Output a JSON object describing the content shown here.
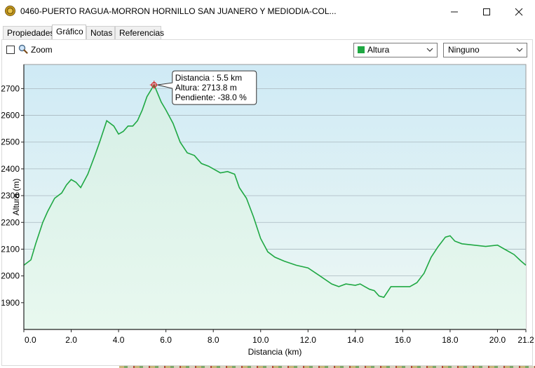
{
  "window": {
    "title": "0460-PUERTO RAGUA-MORRON HORNILLO SAN JUANERO Y MEDIODIA-COL..."
  },
  "tabs": [
    {
      "label": "Propiedades",
      "active": false
    },
    {
      "label": "Gráfico",
      "active": true
    },
    {
      "label": "Notas",
      "active": false
    },
    {
      "label": "Referencias",
      "active": false
    }
  ],
  "toolbar": {
    "zoom_label": "Zoom",
    "zoom_checked": false,
    "series_select": {
      "value": "Altura",
      "color": "#1fa843"
    },
    "secondary_select": {
      "value": "Ninguno"
    }
  },
  "tooltip": {
    "line1": "Distancia  : 5.5 km",
    "line2": "Altura: 2713.8 m",
    "line3": "Pendiente: -38.0 %"
  },
  "chart_data": {
    "type": "area",
    "xlabel": "Distancia  (km)",
    "ylabel": "Altura (m)",
    "xlim": [
      0,
      21.2
    ],
    "ylim": [
      1800,
      2790
    ],
    "x_ticks": [
      "0.0",
      "2.0",
      "4.0",
      "6.0",
      "8.0",
      "10.0",
      "12.0",
      "14.0",
      "16.0",
      "18.0",
      "20.0",
      "21.2"
    ],
    "x_tick_values": [
      0,
      2,
      4,
      6,
      8,
      10,
      12,
      14,
      16,
      18,
      20,
      21.2
    ],
    "y_ticks": [
      "1900",
      "2000",
      "2100",
      "2200",
      "2300",
      "2400",
      "2500",
      "2600",
      "2700"
    ],
    "y_tick_values": [
      1900,
      2000,
      2100,
      2200,
      2300,
      2400,
      2500,
      2600,
      2700
    ],
    "grid": true,
    "line_color": "#1fa843",
    "highlight": {
      "x": 5.5,
      "y": 2713.8
    },
    "series": [
      {
        "x": [
          0,
          0.3,
          0.5,
          0.8,
          1.0,
          1.3,
          1.6,
          1.8,
          2.0,
          2.2,
          2.4,
          2.7,
          3.0,
          3.2,
          3.5,
          3.8,
          4.0,
          4.2,
          4.4,
          4.6,
          4.8,
          5.0,
          5.2,
          5.5,
          5.8,
          6.0,
          6.3,
          6.6,
          6.9,
          7.2,
          7.5,
          7.8,
          8.0,
          8.3,
          8.6,
          8.9,
          9.1,
          9.4,
          9.7,
          10.0,
          10.3,
          10.6,
          11.0,
          11.5,
          12.0,
          12.5,
          13.0,
          13.3,
          13.6,
          14.0,
          14.2,
          14.4,
          14.6,
          14.8,
          15.0,
          15.2,
          15.5,
          16.0,
          16.3,
          16.6,
          16.9,
          17.2,
          17.5,
          17.8,
          18.0,
          18.2,
          18.5,
          19.0,
          19.5,
          20.0,
          20.3,
          20.7,
          21.0,
          21.2
        ],
        "y": [
          2040,
          2060,
          2120,
          2200,
          2240,
          2290,
          2310,
          2340,
          2360,
          2350,
          2330,
          2380,
          2450,
          2500,
          2580,
          2560,
          2530,
          2540,
          2560,
          2560,
          2580,
          2620,
          2670,
          2713.8,
          2650,
          2620,
          2570,
          2500,
          2460,
          2450,
          2420,
          2410,
          2400,
          2385,
          2390,
          2380,
          2330,
          2290,
          2220,
          2140,
          2090,
          2070,
          2055,
          2040,
          2030,
          2000,
          1970,
          1960,
          1970,
          1965,
          1970,
          1960,
          1950,
          1945,
          1925,
          1920,
          1960,
          1960,
          1960,
          1975,
          2010,
          2070,
          2110,
          2145,
          2150,
          2130,
          2120,
          2115,
          2110,
          2115,
          2100,
          2080,
          2055,
          2040
        ]
      }
    ]
  }
}
